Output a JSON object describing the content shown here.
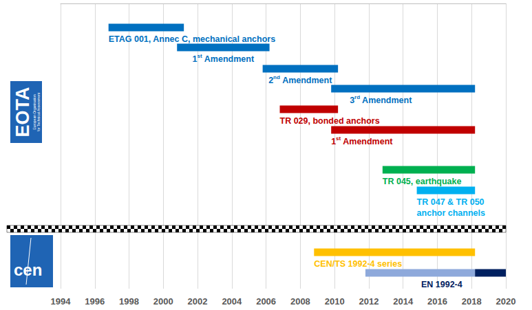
{
  "chart_data": {
    "type": "gantt",
    "xlim": [
      1994,
      2020
    ],
    "xticks": [
      1994,
      1996,
      1998,
      2000,
      2002,
      2004,
      2006,
      2008,
      2010,
      2012,
      2014,
      2016,
      2018,
      2020
    ],
    "grid": true,
    "groups": [
      {
        "name": "EOTA",
        "subtitle": [
          "European Organisation",
          "for Technical Assessment"
        ],
        "color": "#1F64B4"
      },
      {
        "name": "cen",
        "color": "#1F64B4"
      }
    ],
    "tasks": [
      {
        "group": "EOTA",
        "label": "ETAG 001, Annec C, mechanical anchors",
        "segments": [
          {
            "start": 1996.8,
            "end": 2001.2,
            "color": "#0070C0"
          }
        ]
      },
      {
        "group": "EOTA",
        "label": "1st Amendment",
        "segments": [
          {
            "start": 2000.8,
            "end": 2006.2,
            "color": "#0070C0"
          }
        ]
      },
      {
        "group": "EOTA",
        "label": "2nd Amendment",
        "segments": [
          {
            "start": 2005.8,
            "end": 2010.2,
            "color": "#0070C0"
          }
        ]
      },
      {
        "group": "EOTA",
        "label": "3rd Amendment",
        "segments": [
          {
            "start": 2009.8,
            "end": 2018.2,
            "color": "#0070C0"
          }
        ]
      },
      {
        "group": "EOTA",
        "label": "TR 029, bonded anchors",
        "segments": [
          {
            "start": 2006.8,
            "end": 2010.2,
            "color": "#C00000"
          }
        ]
      },
      {
        "group": "EOTA",
        "label": "1st Amendment",
        "segments": [
          {
            "start": 2009.8,
            "end": 2018.2,
            "color": "#C00000"
          }
        ]
      },
      {
        "group": "EOTA",
        "label": "TR 045, earthquake",
        "segments": [
          {
            "start": 2012.8,
            "end": 2018.2,
            "color": "#00B050"
          }
        ]
      },
      {
        "group": "EOTA",
        "label": "TR 047 & TR 050\nanchor channels",
        "segments": [
          {
            "start": 2014.8,
            "end": 2018.2,
            "color": "#00B0F0"
          }
        ]
      },
      {
        "group": "cen",
        "label": "CEN/TS 1992-4 series",
        "segments": [
          {
            "start": 2008.8,
            "end": 2018.2,
            "color": "#FFC000"
          }
        ]
      },
      {
        "group": "cen",
        "label": "EN 1992-4",
        "segments": [
          {
            "start": 2011.8,
            "end": 2018.2,
            "color": "#8EA9DB"
          },
          {
            "start": 2018.2,
            "end": 2020,
            "color": "#002060"
          }
        ]
      }
    ]
  }
}
